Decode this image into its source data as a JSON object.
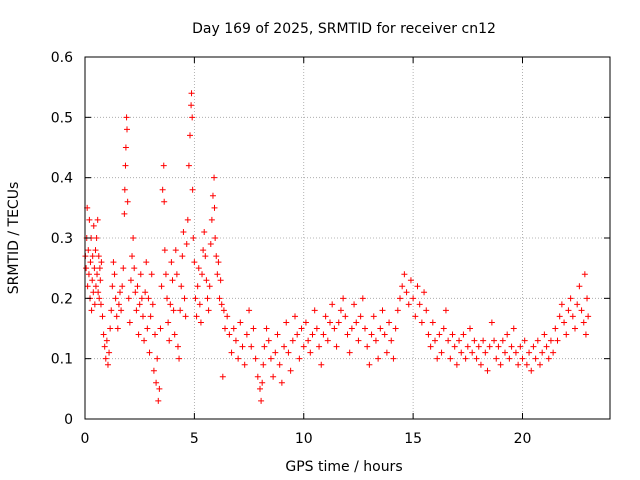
{
  "chart_data": {
    "type": "scatter",
    "title": "Day 169 of 2025, SRMTID for receiver cn12",
    "xlabel": "GPS time / hours",
    "ylabel": "SRMTID / TECUs",
    "xlim": [
      0,
      24
    ],
    "ylim": [
      0,
      0.6
    ],
    "xticks": [
      0,
      5,
      10,
      15,
      20
    ],
    "yticks": [
      0,
      0.1,
      0.2,
      0.3,
      0.4,
      0.5,
      0.6
    ],
    "x_tick_labels": [
      "0",
      "5",
      "10",
      "15",
      "20"
    ],
    "y_tick_labels": [
      "0",
      "0.1",
      "0.2",
      "0.3",
      "0.4",
      "0.5",
      "0.6"
    ],
    "grid": true,
    "marker": "+",
    "color": "#ff0000",
    "series": [
      {
        "name": "SRMTID",
        "points": [
          [
            0.02,
            0.27
          ],
          [
            0.05,
            0.25
          ],
          [
            0.08,
            0.3
          ],
          [
            0.1,
            0.35
          ],
          [
            0.12,
            0.22
          ],
          [
            0.15,
            0.28
          ],
          [
            0.18,
            0.24
          ],
          [
            0.2,
            0.33
          ],
          [
            0.23,
            0.2
          ],
          [
            0.25,
            0.26
          ],
          [
            0.28,
            0.3
          ],
          [
            0.3,
            0.18
          ],
          [
            0.33,
            0.23
          ],
          [
            0.35,
            0.27
          ],
          [
            0.38,
            0.21
          ],
          [
            0.4,
            0.32
          ],
          [
            0.43,
            0.25
          ],
          [
            0.45,
            0.19
          ],
          [
            0.48,
            0.28
          ],
          [
            0.5,
            0.22
          ],
          [
            0.53,
            0.3
          ],
          [
            0.55,
            0.24
          ],
          [
            0.58,
            0.33
          ],
          [
            0.6,
            0.21
          ],
          [
            0.63,
            0.27
          ],
          [
            0.65,
            0.2
          ],
          [
            0.68,
            0.25
          ],
          [
            0.7,
            0.23
          ],
          [
            0.73,
            0.19
          ],
          [
            0.75,
            0.26
          ],
          [
            0.8,
            0.17
          ],
          [
            0.85,
            0.14
          ],
          [
            0.9,
            0.12
          ],
          [
            0.95,
            0.1
          ],
          [
            1.0,
            0.13
          ],
          [
            1.05,
            0.09
          ],
          [
            1.1,
            0.11
          ],
          [
            1.15,
            0.15
          ],
          [
            1.2,
            0.18
          ],
          [
            1.25,
            0.22
          ],
          [
            1.3,
            0.26
          ],
          [
            1.35,
            0.24
          ],
          [
            1.4,
            0.2
          ],
          [
            1.45,
            0.17
          ],
          [
            1.5,
            0.15
          ],
          [
            1.55,
            0.19
          ],
          [
            1.6,
            0.21
          ],
          [
            1.65,
            0.18
          ],
          [
            1.7,
            0.22
          ],
          [
            1.75,
            0.25
          ],
          [
            1.8,
            0.34
          ],
          [
            1.82,
            0.38
          ],
          [
            1.85,
            0.42
          ],
          [
            1.87,
            0.45
          ],
          [
            1.9,
            0.5
          ],
          [
            1.92,
            0.48
          ],
          [
            1.95,
            0.36
          ],
          [
            2.0,
            0.2
          ],
          [
            2.05,
            0.16
          ],
          [
            2.1,
            0.23
          ],
          [
            2.15,
            0.27
          ],
          [
            2.2,
            0.3
          ],
          [
            2.25,
            0.25
          ],
          [
            2.3,
            0.21
          ],
          [
            2.35,
            0.18
          ],
          [
            2.4,
            0.22
          ],
          [
            2.45,
            0.14
          ],
          [
            2.5,
            0.19
          ],
          [
            2.55,
            0.24
          ],
          [
            2.6,
            0.2
          ],
          [
            2.65,
            0.17
          ],
          [
            2.7,
            0.13
          ],
          [
            2.75,
            0.21
          ],
          [
            2.8,
            0.26
          ],
          [
            2.85,
            0.15
          ],
          [
            2.9,
            0.2
          ],
          [
            2.95,
            0.11
          ],
          [
            3.0,
            0.17
          ],
          [
            3.05,
            0.24
          ],
          [
            3.1,
            0.19
          ],
          [
            3.15,
            0.08
          ],
          [
            3.2,
            0.14
          ],
          [
            3.25,
            0.06
          ],
          [
            3.3,
            0.1
          ],
          [
            3.35,
            0.03
          ],
          [
            3.4,
            0.05
          ],
          [
            3.45,
            0.15
          ],
          [
            3.5,
            0.22
          ],
          [
            3.55,
            0.38
          ],
          [
            3.6,
            0.42
          ],
          [
            3.62,
            0.36
          ],
          [
            3.65,
            0.28
          ],
          [
            3.7,
            0.24
          ],
          [
            3.75,
            0.2
          ],
          [
            3.8,
            0.16
          ],
          [
            3.85,
            0.13
          ],
          [
            3.9,
            0.19
          ],
          [
            3.95,
            0.26
          ],
          [
            4.0,
            0.23
          ],
          [
            4.05,
            0.18
          ],
          [
            4.1,
            0.14
          ],
          [
            4.15,
            0.28
          ],
          [
            4.2,
            0.24
          ],
          [
            4.25,
            0.12
          ],
          [
            4.3,
            0.1
          ],
          [
            4.35,
            0.18
          ],
          [
            4.4,
            0.22
          ],
          [
            4.45,
            0.27
          ],
          [
            4.5,
            0.31
          ],
          [
            4.55,
            0.2
          ],
          [
            4.6,
            0.17
          ],
          [
            4.65,
            0.29
          ],
          [
            4.7,
            0.33
          ],
          [
            4.75,
            0.42
          ],
          [
            4.8,
            0.47
          ],
          [
            4.85,
            0.52
          ],
          [
            4.87,
            0.54
          ],
          [
            4.9,
            0.5
          ],
          [
            4.92,
            0.38
          ],
          [
            4.95,
            0.3
          ],
          [
            5.0,
            0.26
          ],
          [
            5.05,
            0.2
          ],
          [
            5.1,
            0.17
          ],
          [
            5.15,
            0.22
          ],
          [
            5.2,
            0.25
          ],
          [
            5.25,
            0.19
          ],
          [
            5.3,
            0.16
          ],
          [
            5.35,
            0.24
          ],
          [
            5.4,
            0.28
          ],
          [
            5.45,
            0.31
          ],
          [
            5.5,
            0.27
          ],
          [
            5.55,
            0.23
          ],
          [
            5.6,
            0.2
          ],
          [
            5.65,
            0.18
          ],
          [
            5.7,
            0.22
          ],
          [
            5.75,
            0.29
          ],
          [
            5.8,
            0.33
          ],
          [
            5.85,
            0.37
          ],
          [
            5.9,
            0.4
          ],
          [
            5.92,
            0.35
          ],
          [
            5.95,
            0.3
          ],
          [
            6.0,
            0.27
          ],
          [
            6.05,
            0.24
          ],
          [
            6.1,
            0.26
          ],
          [
            6.15,
            0.2
          ],
          [
            6.2,
            0.23
          ],
          [
            6.25,
            0.19
          ],
          [
            6.3,
            0.07
          ],
          [
            6.35,
            0.18
          ],
          [
            6.4,
            0.15
          ],
          [
            6.5,
            0.17
          ],
          [
            6.6,
            0.14
          ],
          [
            6.7,
            0.11
          ],
          [
            6.8,
            0.15
          ],
          [
            6.9,
            0.13
          ],
          [
            7.0,
            0.1
          ],
          [
            7.1,
            0.16
          ],
          [
            7.2,
            0.12
          ],
          [
            7.3,
            0.09
          ],
          [
            7.4,
            0.14
          ],
          [
            7.5,
            0.18
          ],
          [
            7.6,
            0.12
          ],
          [
            7.7,
            0.15
          ],
          [
            7.8,
            0.1
          ],
          [
            7.9,
            0.07
          ],
          [
            8.0,
            0.05
          ],
          [
            8.05,
            0.03
          ],
          [
            8.1,
            0.06
          ],
          [
            8.15,
            0.09
          ],
          [
            8.2,
            0.12
          ],
          [
            8.3,
            0.15
          ],
          [
            8.4,
            0.13
          ],
          [
            8.5,
            0.1
          ],
          [
            8.6,
            0.07
          ],
          [
            8.7,
            0.11
          ],
          [
            8.8,
            0.14
          ],
          [
            8.9,
            0.09
          ],
          [
            9.0,
            0.06
          ],
          [
            9.1,
            0.12
          ],
          [
            9.2,
            0.16
          ],
          [
            9.3,
            0.11
          ],
          [
            9.4,
            0.08
          ],
          [
            9.5,
            0.13
          ],
          [
            9.6,
            0.17
          ],
          [
            9.7,
            0.14
          ],
          [
            9.8,
            0.1
          ],
          [
            9.9,
            0.15
          ],
          [
            10.0,
            0.12
          ],
          [
            10.1,
            0.16
          ],
          [
            10.2,
            0.13
          ],
          [
            10.3,
            0.11
          ],
          [
            10.4,
            0.14
          ],
          [
            10.5,
            0.18
          ],
          [
            10.6,
            0.15
          ],
          [
            10.7,
            0.12
          ],
          [
            10.8,
            0.09
          ],
          [
            10.9,
            0.14
          ],
          [
            11.0,
            0.17
          ],
          [
            11.1,
            0.13
          ],
          [
            11.2,
            0.16
          ],
          [
            11.3,
            0.19
          ],
          [
            11.4,
            0.15
          ],
          [
            11.5,
            0.12
          ],
          [
            11.6,
            0.16
          ],
          [
            11.7,
            0.18
          ],
          [
            11.8,
            0.2
          ],
          [
            11.9,
            0.17
          ],
          [
            12.0,
            0.14
          ],
          [
            12.1,
            0.11
          ],
          [
            12.2,
            0.15
          ],
          [
            12.3,
            0.19
          ],
          [
            12.4,
            0.16
          ],
          [
            12.5,
            0.13
          ],
          [
            12.6,
            0.17
          ],
          [
            12.7,
            0.2
          ],
          [
            12.8,
            0.15
          ],
          [
            12.9,
            0.12
          ],
          [
            13.0,
            0.09
          ],
          [
            13.1,
            0.14
          ],
          [
            13.2,
            0.17
          ],
          [
            13.3,
            0.13
          ],
          [
            13.4,
            0.1
          ],
          [
            13.5,
            0.15
          ],
          [
            13.6,
            0.18
          ],
          [
            13.7,
            0.14
          ],
          [
            13.8,
            0.11
          ],
          [
            13.9,
            0.16
          ],
          [
            14.0,
            0.13
          ],
          [
            14.1,
            0.1
          ],
          [
            14.2,
            0.15
          ],
          [
            14.3,
            0.18
          ],
          [
            14.4,
            0.2
          ],
          [
            14.5,
            0.22
          ],
          [
            14.6,
            0.24
          ],
          [
            14.7,
            0.21
          ],
          [
            14.8,
            0.19
          ],
          [
            14.9,
            0.23
          ],
          [
            15.0,
            0.2
          ],
          [
            15.1,
            0.17
          ],
          [
            15.2,
            0.22
          ],
          [
            15.3,
            0.19
          ],
          [
            15.4,
            0.16
          ],
          [
            15.5,
            0.21
          ],
          [
            15.6,
            0.18
          ],
          [
            15.7,
            0.14
          ],
          [
            15.8,
            0.12
          ],
          [
            15.9,
            0.16
          ],
          [
            16.0,
            0.13
          ],
          [
            16.1,
            0.1
          ],
          [
            16.2,
            0.14
          ],
          [
            16.3,
            0.11
          ],
          [
            16.4,
            0.15
          ],
          [
            16.5,
            0.18
          ],
          [
            16.6,
            0.13
          ],
          [
            16.7,
            0.1
          ],
          [
            16.8,
            0.14
          ],
          [
            16.9,
            0.12
          ],
          [
            17.0,
            0.09
          ],
          [
            17.1,
            0.13
          ],
          [
            17.2,
            0.11
          ],
          [
            17.3,
            0.14
          ],
          [
            17.4,
            0.1
          ],
          [
            17.5,
            0.12
          ],
          [
            17.6,
            0.15
          ],
          [
            17.7,
            0.11
          ],
          [
            17.8,
            0.13
          ],
          [
            17.9,
            0.1
          ],
          [
            18.0,
            0.12
          ],
          [
            18.1,
            0.09
          ],
          [
            18.2,
            0.13
          ],
          [
            18.3,
            0.11
          ],
          [
            18.4,
            0.08
          ],
          [
            18.5,
            0.12
          ],
          [
            18.6,
            0.16
          ],
          [
            18.7,
            0.13
          ],
          [
            18.8,
            0.1
          ],
          [
            18.9,
            0.12
          ],
          [
            19.0,
            0.09
          ],
          [
            19.1,
            0.13
          ],
          [
            19.2,
            0.11
          ],
          [
            19.3,
            0.14
          ],
          [
            19.4,
            0.1
          ],
          [
            19.5,
            0.12
          ],
          [
            19.6,
            0.15
          ],
          [
            19.7,
            0.11
          ],
          [
            19.8,
            0.09
          ],
          [
            19.9,
            0.12
          ],
          [
            20.0,
            0.1
          ],
          [
            20.1,
            0.13
          ],
          [
            20.2,
            0.09
          ],
          [
            20.3,
            0.11
          ],
          [
            20.4,
            0.08
          ],
          [
            20.5,
            0.12
          ],
          [
            20.6,
            0.1
          ],
          [
            20.7,
            0.13
          ],
          [
            20.8,
            0.09
          ],
          [
            20.9,
            0.11
          ],
          [
            21.0,
            0.14
          ],
          [
            21.1,
            0.12
          ],
          [
            21.2,
            0.1
          ],
          [
            21.3,
            0.13
          ],
          [
            21.4,
            0.11
          ],
          [
            21.5,
            0.15
          ],
          [
            21.6,
            0.13
          ],
          [
            21.7,
            0.17
          ],
          [
            21.8,
            0.19
          ],
          [
            21.9,
            0.16
          ],
          [
            22.0,
            0.14
          ],
          [
            22.1,
            0.18
          ],
          [
            22.2,
            0.2
          ],
          [
            22.3,
            0.17
          ],
          [
            22.4,
            0.15
          ],
          [
            22.5,
            0.19
          ],
          [
            22.6,
            0.22
          ],
          [
            22.7,
            0.18
          ],
          [
            22.8,
            0.16
          ],
          [
            22.85,
            0.24
          ],
          [
            22.9,
            0.14
          ],
          [
            22.95,
            0.2
          ],
          [
            23.0,
            0.17
          ]
        ]
      }
    ]
  }
}
